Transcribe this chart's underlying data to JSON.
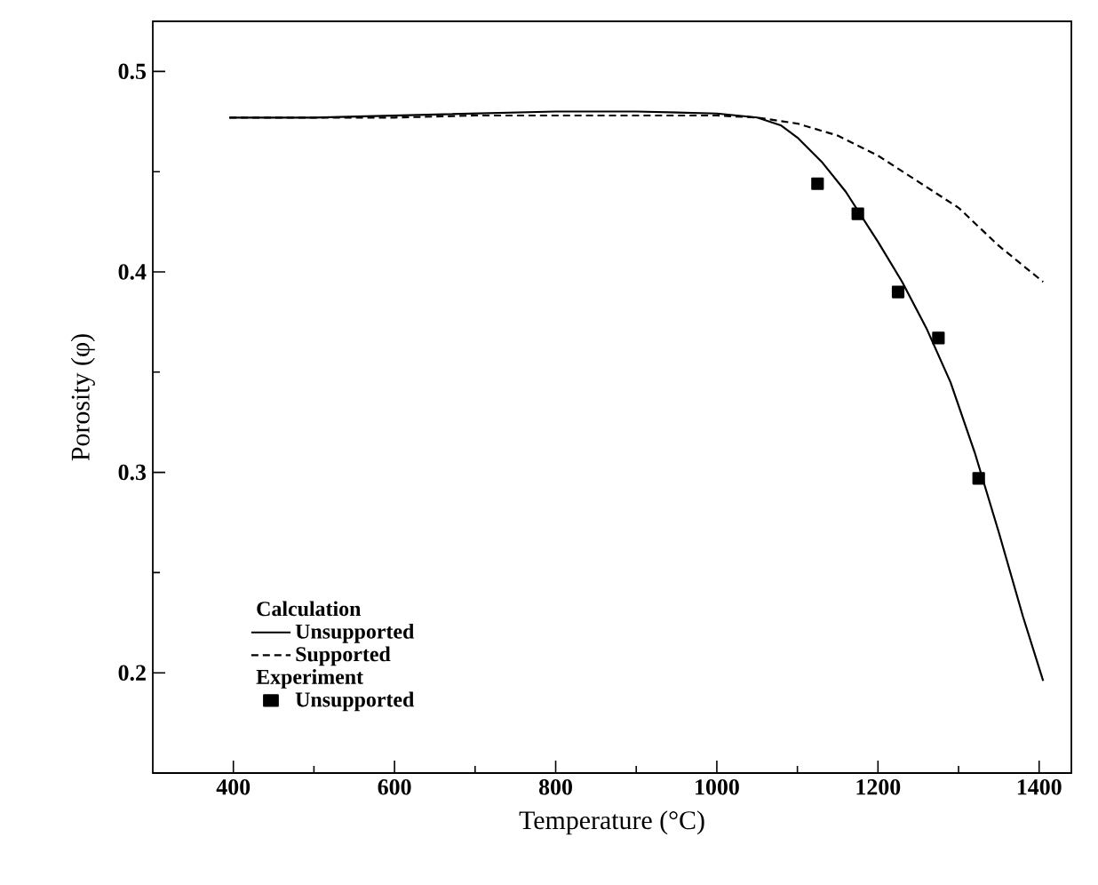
{
  "chart_data": {
    "type": "line",
    "xlabel": "Temperature (°C)",
    "ylabel": "Porosity (φ)",
    "xlim": [
      300,
      1440
    ],
    "ylim": [
      0.15,
      0.525
    ],
    "xticks": [
      400,
      600,
      800,
      1000,
      1200,
      1400
    ],
    "yticks": [
      {
        "value": 0.2,
        "label": "0.2"
      },
      {
        "value": 0.3,
        "label": "0.3"
      },
      {
        "value": 0.4,
        "label": "0.4"
      },
      {
        "value": 0.5,
        "label": "0.5"
      }
    ],
    "grid": false,
    "legend": "bottom left",
    "annotations": [
      "Calculation",
      "Experiment"
    ],
    "series": [
      {
        "name": "Unsupported",
        "line_style": "solid",
        "marker": "none",
        "color": "#000000",
        "x": [
          395,
          500,
          600,
          700,
          800,
          900,
          1000,
          1050,
          1080,
          1100,
          1130,
          1160,
          1200,
          1230,
          1260,
          1290,
          1320,
          1350,
          1380,
          1405
        ],
        "values": [
          0.477,
          0.477,
          0.478,
          0.479,
          0.48,
          0.48,
          0.479,
          0.477,
          0.473,
          0.467,
          0.455,
          0.44,
          0.415,
          0.395,
          0.372,
          0.345,
          0.31,
          0.27,
          0.228,
          0.196
        ]
      },
      {
        "name": "Supported",
        "line_style": "dashed",
        "marker": "none",
        "color": "#000000",
        "x": [
          395,
          500,
          600,
          700,
          800,
          900,
          1000,
          1050,
          1100,
          1150,
          1200,
          1250,
          1300,
          1350,
          1405
        ],
        "values": [
          0.477,
          0.477,
          0.477,
          0.478,
          0.478,
          0.478,
          0.478,
          0.477,
          0.474,
          0.468,
          0.458,
          0.445,
          0.432,
          0.413,
          0.395
        ]
      },
      {
        "name": "Unsupported",
        "type": "scatter",
        "marker": "square",
        "color": "#000000",
        "x": [
          1125,
          1175,
          1225,
          1275,
          1325
        ],
        "values": [
          0.444,
          0.429,
          0.39,
          0.367,
          0.297
        ]
      }
    ]
  }
}
